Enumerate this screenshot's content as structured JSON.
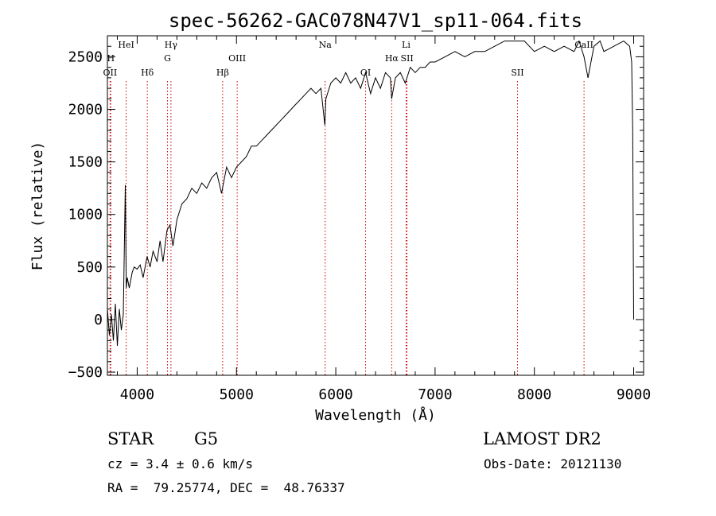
{
  "chart_data": {
    "type": "line",
    "title": "spec-56262-GAC078N47V1_sp11-064.fits",
    "xlabel": "Wavelength (Å)",
    "ylabel": "Flux (relative)",
    "xlim": [
      3700,
      9100
    ],
    "ylim": [
      -530,
      2700
    ],
    "xticks": [
      4000,
      5000,
      6000,
      7000,
      8000,
      9000
    ],
    "xtick_labels": [
      "4000",
      "5000",
      "6000",
      "7000",
      "8000",
      "9000"
    ],
    "yticks": [
      -500,
      0,
      500,
      1000,
      1500,
      2000,
      2500
    ],
    "ytick_labels": [
      "−500",
      "0",
      "500",
      "1000",
      "1500",
      "2000",
      "2500"
    ],
    "series": [
      {
        "name": "flux",
        "x": [
          3700,
          3720,
          3740,
          3760,
          3780,
          3800,
          3820,
          3840,
          3860,
          3880,
          3890,
          3900,
          3920,
          3950,
          3970,
          4000,
          4030,
          4060,
          4100,
          4130,
          4160,
          4200,
          4230,
          4260,
          4300,
          4330,
          4360,
          4400,
          4450,
          4500,
          4550,
          4600,
          4650,
          4700,
          4750,
          4800,
          4850,
          4900,
          4950,
          5000,
          5050,
          5100,
          5150,
          5200,
          5250,
          5300,
          5350,
          5400,
          5450,
          5500,
          5550,
          5600,
          5650,
          5700,
          5750,
          5800,
          5850,
          5890,
          5900,
          5950,
          6000,
          6050,
          6100,
          6150,
          6200,
          6250,
          6300,
          6350,
          6400,
          6450,
          6500,
          6550,
          6563,
          6600,
          6650,
          6700,
          6750,
          6800,
          6850,
          6900,
          6950,
          7000,
          7100,
          7200,
          7300,
          7400,
          7500,
          7600,
          7700,
          7800,
          7900,
          8000,
          8100,
          8200,
          8300,
          8400,
          8450,
          8500,
          8540,
          8600,
          8662,
          8700,
          8800,
          8900,
          8960,
          8980,
          8990,
          9000
        ],
        "values": [
          100,
          -150,
          50,
          -200,
          150,
          -250,
          100,
          -100,
          50,
          1280,
          300,
          400,
          300,
          450,
          500,
          480,
          520,
          400,
          600,
          500,
          650,
          550,
          750,
          550,
          850,
          900,
          700,
          950,
          1100,
          1150,
          1250,
          1200,
          1300,
          1250,
          1350,
          1400,
          1200,
          1450,
          1350,
          1450,
          1500,
          1550,
          1650,
          1650,
          1700,
          1750,
          1800,
          1850,
          1900,
          1950,
          2000,
          2050,
          2100,
          2150,
          2200,
          2150,
          2200,
          1850,
          2100,
          2250,
          2300,
          2250,
          2350,
          2250,
          2300,
          2200,
          2350,
          2150,
          2300,
          2200,
          2350,
          2300,
          2100,
          2300,
          2350,
          2250,
          2400,
          2350,
          2400,
          2400,
          2450,
          2450,
          2500,
          2550,
          2500,
          2550,
          2550,
          2600,
          2650,
          2650,
          2650,
          2550,
          2600,
          2550,
          2600,
          2550,
          2650,
          2500,
          2300,
          2600,
          2650,
          2550,
          2600,
          2650,
          2600,
          2450,
          1800,
          0
        ]
      }
    ],
    "line_markers": [
      {
        "label": "OII",
        "wavelength": 3727,
        "row": "low"
      },
      {
        "label": "H",
        "wavelength": 3734,
        "row": "mid"
      },
      {
        "label": "HeI",
        "wavelength": 3889,
        "row": "top"
      },
      {
        "label": "Hδ",
        "wavelength": 4102,
        "row": "low"
      },
      {
        "label": "Hγ",
        "wavelength": 4340,
        "row": "top"
      },
      {
        "label": "G",
        "wavelength": 4305,
        "row": "mid"
      },
      {
        "label": "Hβ",
        "wavelength": 4861,
        "row": "low"
      },
      {
        "label": "OIII",
        "wavelength": 5007,
        "row": "mid"
      },
      {
        "label": "Na",
        "wavelength": 5893,
        "row": "top"
      },
      {
        "label": "OI",
        "wavelength": 6300,
        "row": "low"
      },
      {
        "label": "Hα",
        "wavelength": 6563,
        "row": "mid"
      },
      {
        "label": "SII",
        "wavelength": 6717,
        "row": "mid"
      },
      {
        "label": "Li",
        "wavelength": 6708,
        "row": "top"
      },
      {
        "label": "SII",
        "wavelength": 7830,
        "row": "low"
      },
      {
        "label": "CaII",
        "wavelength": 8500,
        "row": "top"
      }
    ],
    "marker_color": "#cc0000",
    "line_color": "#000000"
  },
  "footer": {
    "object_type": "STAR",
    "subclass": "G5",
    "survey": "LAMOST DR2",
    "redshift": "cz = 3.4 ± 0.6 km/s",
    "obs_date": "Obs-Date: 20121130",
    "coords": "RA =  79.25774, DEC =  48.76337"
  }
}
